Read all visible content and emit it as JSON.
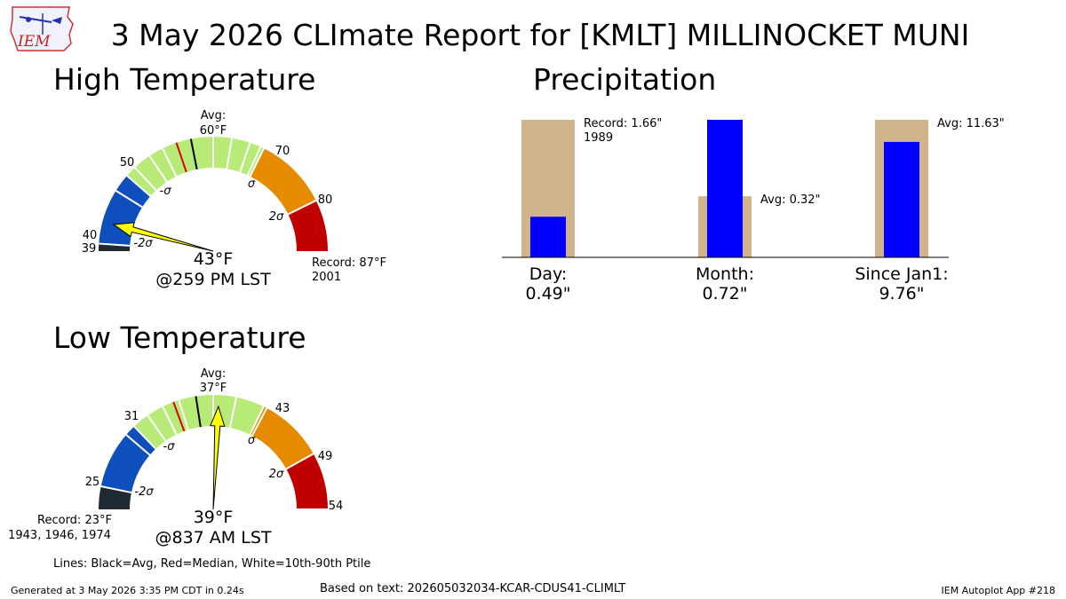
{
  "header": {
    "title": "3 May 2026 CLImate Report for [KMLT] MILLINOCKET MUNI",
    "logo_text": "IEM"
  },
  "colors": {
    "below_2sigma": "#1f2a33",
    "minus_sigma": "#0f4fbd",
    "normal": "#b8ea78",
    "plus_sigma": "#e68a00",
    "above_2sigma": "#c00000",
    "avg_line": "#000000",
    "median_line": "#dd0000",
    "arrow": "#ffff00",
    "precip_avg_bar": "#d2b48c",
    "precip_obs_bar": "#0000ff"
  },
  "high": {
    "section_title": "High Temperature",
    "scale_min": 39,
    "scale_max": 87,
    "bands": [
      {
        "from": 39,
        "to": 40,
        "color": "#1f2a33"
      },
      {
        "from": 40,
        "to": 50,
        "color": "#0f4fbd"
      },
      {
        "from": 50,
        "to": 70,
        "color": "#b8ea78"
      },
      {
        "from": 70,
        "to": 80,
        "color": "#e68a00"
      },
      {
        "from": 80,
        "to": 87,
        "color": "#c00000"
      }
    ],
    "tick_values": [
      40,
      50,
      70,
      80
    ],
    "tick_labels": {
      "t39": "39",
      "t40": "40",
      "t50": "50",
      "t70": "70",
      "t80": "80"
    },
    "sigma_labels": {
      "m2": "-2σ",
      "m1": "-σ",
      "p1": "σ",
      "p2": "2σ"
    },
    "avg": 60,
    "avg_label": "Avg:",
    "avg_value": "60°F",
    "median": 58,
    "percentile_lines": [
      47.5,
      51.5,
      54,
      56,
      63,
      65.5,
      68,
      69.5
    ],
    "observed": 43,
    "observed_label": "43°F",
    "time_label": "@259 PM LST",
    "record_label": "Record: 87°F",
    "record_years": "2001"
  },
  "low": {
    "section_title": "Low Temperature",
    "scale_min": 23,
    "scale_max": 54,
    "bands": [
      {
        "from": 23,
        "to": 25,
        "color": "#1f2a33"
      },
      {
        "from": 25,
        "to": 31,
        "color": "#0f4fbd"
      },
      {
        "from": 31,
        "to": 43,
        "color": "#b8ea78"
      },
      {
        "from": 43,
        "to": 49,
        "color": "#e68a00"
      },
      {
        "from": 49,
        "to": 54,
        "color": "#c00000"
      }
    ],
    "tick_values": [
      25,
      31,
      43,
      49,
      54
    ],
    "tick_labels": {
      "t25": "25",
      "t31": "31",
      "t43": "43",
      "t49": "49",
      "t54": "54"
    },
    "sigma_labels": {
      "m2": "-2σ",
      "m1": "-σ",
      "p1": "σ",
      "p2": "2σ"
    },
    "avg": 37,
    "avg_label": "Avg:",
    "avg_value": "37°F",
    "median": 35,
    "percentile_lines": [
      30,
      32.5,
      34,
      35.5,
      38.5,
      40.5,
      43.3
    ],
    "observed": 39,
    "observed_label": "39°F",
    "time_label": "@837 AM LST",
    "record_label": "Record: 23°F",
    "record_years": "1943, 1946, 1974"
  },
  "chart_data": {
    "type": "bar",
    "title": "Precipitation",
    "categories": [
      "Day:",
      "Month:",
      "Since Jan1:"
    ],
    "series": [
      {
        "values": [
          1.66,
          0.32,
          11.63
        ]
      },
      {
        "values": [
          0.49,
          0.72,
          9.76
        ]
      }
    ],
    "value_labels": [
      "0.49\"",
      "0.72\"",
      "9.76\""
    ],
    "annotations": [
      {
        "line1": "Record: 1.66\"",
        "line2": "1989"
      },
      {
        "line1": "Avg: 0.32\"",
        "line2": ""
      },
      {
        "line1": "Avg: 11.63\"",
        "line2": ""
      }
    ],
    "ylim_ratio": [
      0,
      1
    ]
  },
  "footer": {
    "legend_note": "Lines: Black=Avg, Red=Median, White=10th-90th Ptile",
    "generated": "Generated at 3 May 2026 3:35 PM CDT in 0.24s",
    "source": "Based on text: 202605032034-KCAR-CDUS41-CLIMLT",
    "app": "IEM Autoplot App #218"
  }
}
